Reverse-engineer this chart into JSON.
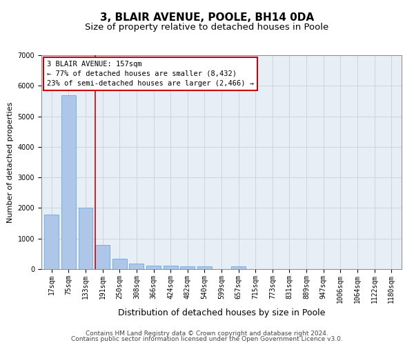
{
  "title1": "3, BLAIR AVENUE, POOLE, BH14 0DA",
  "title2": "Size of property relative to detached houses in Poole",
  "xlabel": "Distribution of detached houses by size in Poole",
  "ylabel": "Number of detached properties",
  "categories": [
    "17sqm",
    "75sqm",
    "133sqm",
    "191sqm",
    "250sqm",
    "308sqm",
    "366sqm",
    "424sqm",
    "482sqm",
    "540sqm",
    "599sqm",
    "657sqm",
    "715sqm",
    "773sqm",
    "831sqm",
    "889sqm",
    "947sqm",
    "1006sqm",
    "1064sqm",
    "1122sqm",
    "1180sqm"
  ],
  "values": [
    1780,
    5680,
    2020,
    800,
    340,
    175,
    110,
    105,
    95,
    80,
    0,
    95,
    0,
    0,
    0,
    0,
    0,
    0,
    0,
    0,
    0
  ],
  "bar_color": "#aec6e8",
  "bar_edge_color": "#5a9fd4",
  "annotation_line_color": "#cc0000",
  "annotation_box_color": "#ffffff",
  "annotation_border_color": "#cc0000",
  "annotation_text_line1": "3 BLAIR AVENUE: 157sqm",
  "annotation_text_line2": "← 77% of detached houses are smaller (8,432)",
  "annotation_text_line3": "23% of semi-detached houses are larger (2,466) →",
  "ylim": [
    0,
    7000
  ],
  "yticks": [
    0,
    1000,
    2000,
    3000,
    4000,
    5000,
    6000,
    7000
  ],
  "grid_color": "#c8d0dc",
  "bg_color": "#e8eef5",
  "footer1": "Contains HM Land Registry data © Crown copyright and database right 2024.",
  "footer2": "Contains public sector information licensed under the Open Government Licence v3.0.",
  "title1_fontsize": 11,
  "title2_fontsize": 9.5,
  "xlabel_fontsize": 9,
  "ylabel_fontsize": 8,
  "tick_fontsize": 7,
  "annot_fontsize": 7.5,
  "footer_fontsize": 6.5
}
